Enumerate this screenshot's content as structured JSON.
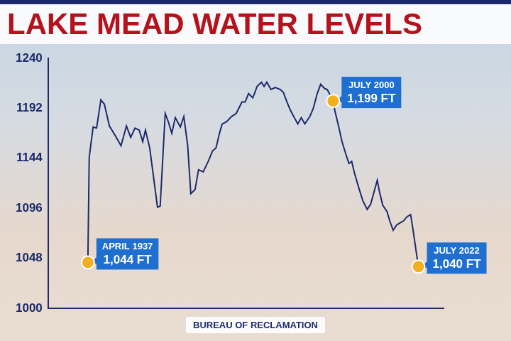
{
  "chart_data": {
    "type": "line",
    "title": "LAKE MEAD WATER LEVELS",
    "source": "BUREAU OF RECLAMATION",
    "x": [
      1937.25,
      1937.6,
      1938.6,
      1939.5,
      1940.6,
      1941.5,
      1942.8,
      1944.6,
      1945.8,
      1947.2,
      1948.3,
      1949.4,
      1950.5,
      1951.4,
      1952.1,
      1953.2,
      1954.4,
      1955.2,
      1955.9,
      1957.2,
      1958,
      1958.9,
      1959.8,
      1961.1,
      1962,
      1963,
      1963.8,
      1964.9,
      1965.8,
      1967,
      1968.3,
      1969.4,
      1970.3,
      1971.2,
      1971.9,
      1973,
      1974.3,
      1975.5,
      1977,
      1977.8,
      1978.7,
      1979.8,
      1980.9,
      1982,
      1982.7,
      1983.4,
      1984.5,
      1985.6,
      1986.9,
      1987.7,
      1988.6,
      1989.5,
      1990.5,
      1991.4,
      1992.3,
      1993.2,
      1994.5,
      1995.4,
      1996.4,
      1997.3,
      1998.3,
      1999,
      2000.5,
      2001,
      2001.9,
      2002.8,
      2003.7,
      2004.6,
      2005.3,
      2006,
      2007.1,
      2008.2,
      2009.3,
      2010.2,
      2011.9,
      2012.4,
      2013.3,
      2014.4,
      2015.1,
      2016,
      2016.9,
      2017.8,
      2018.7,
      2019.6,
      2020.5,
      2021.1,
      2022.5
    ],
    "values": [
      1044,
      1145,
      1174,
      1173,
      1200,
      1196,
      1175,
      1164,
      1156,
      1175,
      1164,
      1173,
      1171,
      1160,
      1171,
      1154,
      1120,
      1097,
      1098,
      1187,
      1179,
      1168,
      1183,
      1174,
      1184,
      1156,
      1110,
      1114,
      1133,
      1131,
      1141,
      1151,
      1154,
      1168,
      1177,
      1179,
      1184,
      1187,
      1198,
      1198,
      1206,
      1202,
      1213,
      1217,
      1213,
      1217,
      1210,
      1212,
      1210,
      1207,
      1198,
      1190,
      1183,
      1177,
      1183,
      1177,
      1184,
      1192,
      1206,
      1215,
      1211,
      1210,
      1199,
      1189,
      1175,
      1160,
      1149,
      1139,
      1141,
      1130,
      1116,
      1103,
      1095,
      1100,
      1123,
      1113,
      1099,
      1093,
      1084,
      1075,
      1080,
      1082,
      1084,
      1088,
      1090,
      1076,
      1040
    ],
    "color": "#1b2a6b",
    "xlim": [
      1927,
      2029
    ],
    "xticks": [],
    "ylim": [
      1000,
      1240
    ],
    "yticks": [
      1000,
      1048,
      1096,
      1144,
      1192,
      1240
    ],
    "grid": false,
    "tick_labels": "y",
    "annotations": [
      {
        "x": 1937.25,
        "y": 1044,
        "text": [
          "APRIL 1937",
          "1,044 FT"
        ]
      },
      {
        "x": 2000.5,
        "y": 1199,
        "text": [
          "JULY 2000",
          "1,199 FT"
        ]
      },
      {
        "x": 2022.5,
        "y": 1040,
        "text": [
          "JULY 2022",
          "1,040 FT"
        ]
      }
    ]
  }
}
